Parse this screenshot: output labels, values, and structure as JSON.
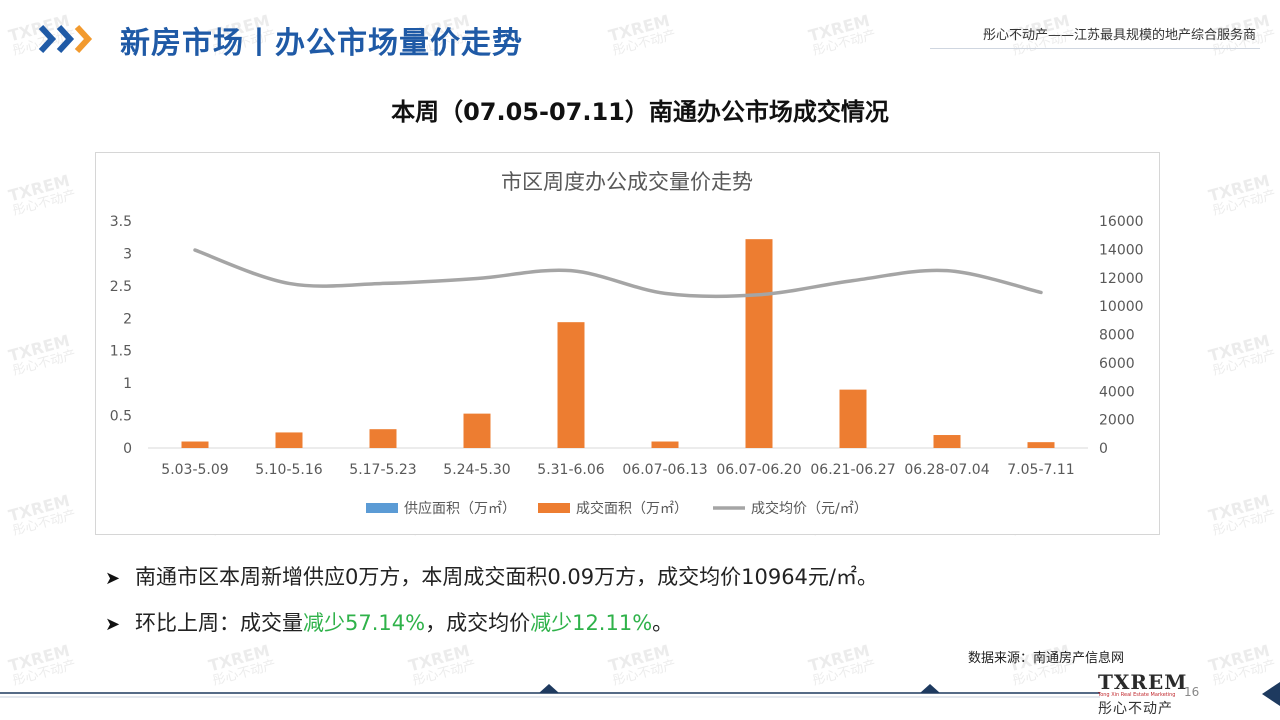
{
  "header": {
    "title": "新房市场丨办公市场量价走势",
    "tagline": "彤心不动产——江苏最具规模的地产综合服务商"
  },
  "subtitle": "本周（07.05-07.11）南通办公市场成交情况",
  "chart_data": {
    "type": "bar+line",
    "title": "市区周度办公成交量价走势",
    "categories": [
      "5.03-5.09",
      "5.10-5.16",
      "5.17-5.23",
      "5.24-5.30",
      "5.31-6.06",
      "06.07-06.13",
      "06.07-06.20",
      "06.21-06.27",
      "06.28-07.04",
      "7.05-7.11"
    ],
    "series": [
      {
        "name": "供应面积（万㎡）",
        "type": "bar",
        "axis": "left",
        "color": "#5b9bd5",
        "values": [
          0,
          0,
          0,
          0,
          0,
          0,
          0,
          0,
          0,
          0
        ]
      },
      {
        "name": "成交面积（万㎡）",
        "type": "bar",
        "axis": "left",
        "color": "#ed7d31",
        "values": [
          0.1,
          0.24,
          0.29,
          0.53,
          1.94,
          0.1,
          3.22,
          0.9,
          0.2,
          0.09
        ]
      },
      {
        "name": "成交均价（元/㎡）",
        "type": "line",
        "axis": "right",
        "color": "#a5a5a5",
        "values": [
          13950,
          11600,
          11600,
          11950,
          12500,
          10900,
          10800,
          11800,
          12500,
          10964
        ]
      }
    ],
    "y_left": {
      "min": 0,
      "max": 3.5,
      "ticks": [
        "0",
        "0.5",
        "1",
        "1.5",
        "2",
        "2.5",
        "3",
        "3.5"
      ]
    },
    "y_right": {
      "min": 0,
      "max": 16000,
      "ticks": [
        "0",
        "2000",
        "4000",
        "6000",
        "8000",
        "10000",
        "12000",
        "14000",
        "16000"
      ]
    },
    "grid": false,
    "legend": "bottom"
  },
  "bullets": [
    {
      "parts": [
        {
          "text": "南通市区本周新增供应0万方，本周成交面积0.09万方，成交均价10964元/㎡。",
          "color": ""
        }
      ]
    },
    {
      "parts": [
        {
          "text": "环比上周：成交量",
          "color": ""
        },
        {
          "text": "减少57.14%",
          "color": "green"
        },
        {
          "text": "，成交均价",
          "color": ""
        },
        {
          "text": "减少12.11%",
          "color": "green"
        },
        {
          "text": "。",
          "color": ""
        }
      ]
    }
  ],
  "source": "数据来源：南通房产信息网",
  "footer": {
    "logo_text": "TXREM",
    "logo_tagline": "Tong Xin Real Estate Marketing",
    "logo_cn": "彤心不动产",
    "page_number": "16"
  },
  "watermark": {
    "en": "TXREM",
    "cn": "彤心不动产"
  },
  "colors": {
    "brand_blue": "#1f5aa6",
    "accent_orange": "#f29a2e",
    "navy": "#1e3a5f",
    "positive_green": "#2fb24a"
  }
}
